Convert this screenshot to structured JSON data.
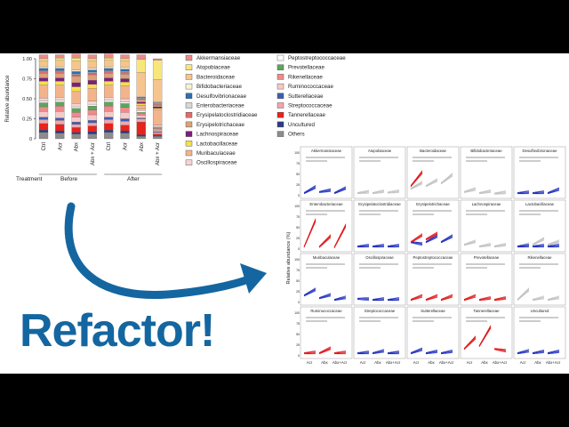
{
  "headline": "Refactor!",
  "colors": {
    "arrow": "#1466a0",
    "before_lines": "#c0c0c0",
    "after_blue": "#1f2fbf",
    "after_red": "#e0161a"
  },
  "chart_data": [
    {
      "type": "bar",
      "stacked": true,
      "ylabel": "Relative abundance",
      "ylim": [
        0,
        1.0
      ],
      "yticks": [
        "0",
        "0.25",
        "0.50",
        "0.75",
        "1.00"
      ],
      "categories": [
        "Ctrl",
        "Acr",
        "Abx",
        "Abx + Acr",
        "Ctrl",
        "Acr",
        "Abx",
        "Abx + Acr"
      ],
      "row_label": "Treatment",
      "groups": [
        "Before",
        "After"
      ],
      "series": [
        {
          "name": "Others",
          "color": "#8c8c8c",
          "values": [
            0.08,
            0.07,
            0.06,
            0.06,
            0.08,
            0.07,
            0.03,
            0.03
          ]
        },
        {
          "name": "Uncultured",
          "color": "#2c3c86",
          "values": [
            0.03,
            0.03,
            0.02,
            0.03,
            0.03,
            0.03,
            0.02,
            0.01
          ]
        },
        {
          "name": "Tannerellaceae",
          "color": "#e8231b",
          "values": [
            0.08,
            0.08,
            0.06,
            0.07,
            0.08,
            0.07,
            0.16,
            0.02
          ]
        },
        {
          "name": "Streptococcaceae",
          "color": "#f1a6ad",
          "values": [
            0.05,
            0.05,
            0.04,
            0.04,
            0.05,
            0.05,
            0.04,
            0.02
          ]
        },
        {
          "name": "Sutterellaceae",
          "color": "#3b5fb4",
          "values": [
            0.03,
            0.03,
            0.03,
            0.03,
            0.03,
            0.03,
            0.01,
            0.01
          ]
        },
        {
          "name": "Ruminococcaceae",
          "color": "#f6c9c9",
          "values": [
            0.07,
            0.08,
            0.06,
            0.07,
            0.07,
            0.08,
            0.03,
            0.02
          ]
        },
        {
          "name": "Rikenellaceae",
          "color": "#f08a8a",
          "values": [
            0.06,
            0.07,
            0.06,
            0.06,
            0.07,
            0.06,
            0.03,
            0.02
          ]
        },
        {
          "name": "Prevotellaceae",
          "color": "#59a85c",
          "values": [
            0.05,
            0.05,
            0.05,
            0.05,
            0.05,
            0.05,
            0.01,
            0.01
          ]
        },
        {
          "name": "Peptostreptococcaceae",
          "color": "#ffffff",
          "values": [
            0.02,
            0.02,
            0.02,
            0.02,
            0.02,
            0.02,
            0.02,
            0.01
          ]
        },
        {
          "name": "Oscillospiraceae",
          "color": "#f7d3d3",
          "values": [
            0.04,
            0.04,
            0.04,
            0.04,
            0.04,
            0.04,
            0.02,
            0.02
          ]
        },
        {
          "name": "Muribaculaceae",
          "color": "#f3b48c",
          "values": [
            0.16,
            0.15,
            0.15,
            0.16,
            0.15,
            0.16,
            0.05,
            0.19
          ]
        },
        {
          "name": "Lactobacillaceae",
          "color": "#f5e04c",
          "values": [
            0.05,
            0.05,
            0.06,
            0.05,
            0.05,
            0.05,
            0.02,
            0.02
          ]
        },
        {
          "name": "Lachnospiraceae",
          "color": "#7b1f7e",
          "values": [
            0.04,
            0.04,
            0.05,
            0.05,
            0.04,
            0.04,
            0.02,
            0.02
          ]
        },
        {
          "name": "Erysipelotrichaceae",
          "color": "#d9a27a",
          "values": [
            0.06,
            0.06,
            0.08,
            0.07,
            0.06,
            0.06,
            0.03,
            0.02
          ]
        },
        {
          "name": "Erysipelatoclostridiaceae",
          "color": "#e36a6a",
          "values": [
            0.02,
            0.02,
            0.02,
            0.02,
            0.02,
            0.02,
            0.01,
            0.01
          ]
        },
        {
          "name": "Enterobacteriaceae",
          "color": "#d8d8d8",
          "values": [
            0.01,
            0.01,
            0.01,
            0.01,
            0.01,
            0.01,
            0.01,
            0.01
          ]
        },
        {
          "name": "Desulfovibrionaceae",
          "color": "#2e6fb5",
          "values": [
            0.03,
            0.03,
            0.03,
            0.03,
            0.03,
            0.03,
            0.01,
            0.01
          ]
        },
        {
          "name": "Bifidobacteriaceae",
          "color": "#f8f3d8",
          "values": [
            0.02,
            0.02,
            0.02,
            0.02,
            0.02,
            0.02,
            0.01,
            0.01
          ]
        },
        {
          "name": "Bacteroidaceae",
          "color": "#f6c58f",
          "values": [
            0.07,
            0.08,
            0.11,
            0.09,
            0.08,
            0.08,
            0.3,
            0.28
          ]
        },
        {
          "name": "Atopobiaceae",
          "color": "#f7e77a",
          "values": [
            0.03,
            0.03,
            0.04,
            0.03,
            0.03,
            0.03,
            0.16,
            0.24
          ]
        },
        {
          "name": "Akkermansiaceae",
          "color": "#ee8a8a",
          "values": [
            0.05,
            0.04,
            0.05,
            0.05,
            0.05,
            0.05,
            0.06,
            0.02
          ]
        }
      ],
      "legend_left": [
        "Akkermansiaceae",
        "Atopobiaceae",
        "Bacteroidaceae",
        "Bifidobacteriaceae",
        "Desulfovibrionaceae",
        "Enterobacteriaceae",
        "Erysipelatoclostridiaceae",
        "Erysipelotrichaceae",
        "Lachnospiraceae",
        "Lactobacillaceae",
        "Muribaculaceae",
        "Oscillospiraceae"
      ],
      "legend_right": [
        "Peptostreptococcaceae",
        "Prevotellaceae",
        "Rikenellaceae",
        "Ruminococcaceae",
        "Sutterellaceae",
        "Streptococcaceae",
        "Tannerellaceae",
        "Uncultured",
        "Others"
      ]
    },
    {
      "type": "line",
      "ylabel": "Relative abundance (%)",
      "yticks": [
        "0",
        "25",
        "50",
        "75",
        "100"
      ],
      "xticks": [
        "Acr",
        "Abx",
        "Abx+Acr"
      ],
      "panels": [
        {
          "name": "Akkermansiaceae",
          "lines": [
            [
              "b",
              2,
              12,
              4,
              6,
              2,
              10
            ]
          ]
        },
        {
          "name": "Atopobiaceae",
          "lines": [
            [
              "g",
              2,
              3,
              2,
              4,
              3,
              4
            ]
          ]
        },
        {
          "name": "Bacteroidaceae",
          "lines": [
            [
              "g",
              10,
              20,
              15,
              25,
              20,
              35
            ],
            [
              "r",
              15,
              40,
              0,
              0,
              0,
              0
            ]
          ]
        },
        {
          "name": "Bifidobacteriaceae",
          "lines": [
            [
              "g",
              4,
              8,
              2,
              4,
              1,
              2
            ]
          ]
        },
        {
          "name": "Desulfovibrionaceae",
          "lines": [
            [
              "b",
              2,
              2,
              2,
              2,
              2,
              8
            ]
          ]
        },
        {
          "name": "Enterobacteriaceae",
          "lines": [
            [
              "r",
              1,
              50,
              1,
              20,
              0,
              40
            ]
          ]
        },
        {
          "name": "Erysipelatoclostridiaceae",
          "lines": [
            [
              "b",
              2,
              2,
              2,
              2,
              2,
              2
            ]
          ]
        },
        {
          "name": "Erysipelotrichaceae",
          "lines": [
            [
              "b",
              10,
              5,
              10,
              20,
              10,
              20
            ],
            [
              "r",
              10,
              22,
              15,
              25,
              0,
              0
            ]
          ]
        },
        {
          "name": "Lachnospiraceae",
          "lines": [
            [
              "g",
              5,
              10,
              2,
              4,
              2,
              4
            ]
          ]
        },
        {
          "name": "Lactobacillaceae",
          "lines": [
            [
              "g",
              2,
              5,
              5,
              15,
              5,
              10
            ],
            [
              "b",
              2,
              2,
              2,
              2,
              2,
              2
            ]
          ]
        },
        {
          "name": "Muribaculaceae",
          "lines": [
            [
              "b",
              10,
              20,
              5,
              10,
              2,
              5
            ]
          ]
        },
        {
          "name": "Oscillospiraceae",
          "lines": [
            [
              "b",
              4,
              2,
              2,
              2,
              2,
              2
            ]
          ]
        },
        {
          "name": "Peptostreptococcaceae",
          "lines": [
            [
              "r",
              2,
              8,
              2,
              8,
              2,
              8
            ]
          ]
        },
        {
          "name": "Prevotellaceae",
          "lines": [
            [
              "r",
              2,
              8,
              2,
              4,
              2,
              4
            ]
          ]
        },
        {
          "name": "Rikenellaceae",
          "lines": [
            [
              "g",
              2,
              20,
              2,
              5,
              2,
              5
            ]
          ]
        },
        {
          "name": "Ruminococcaceae",
          "lines": [
            [
              "r",
              2,
              2,
              2,
              10,
              2,
              2
            ]
          ]
        },
        {
          "name": "Streptococcaceae",
          "lines": [
            [
              "b",
              2,
              2,
              2,
              5,
              2,
              2
            ]
          ]
        },
        {
          "name": "Sutterellaceae",
          "lines": [
            [
              "b",
              2,
              8,
              2,
              4,
              2,
              4
            ]
          ]
        },
        {
          "name": "Tannerellaceae",
          "lines": [
            [
              "r",
              10,
              30,
              15,
              50,
              10,
              5
            ]
          ]
        },
        {
          "name": "Uncultured",
          "lines": [
            [
              "b",
              2,
              5,
              2,
              4,
              2,
              4
            ]
          ]
        }
      ]
    }
  ]
}
